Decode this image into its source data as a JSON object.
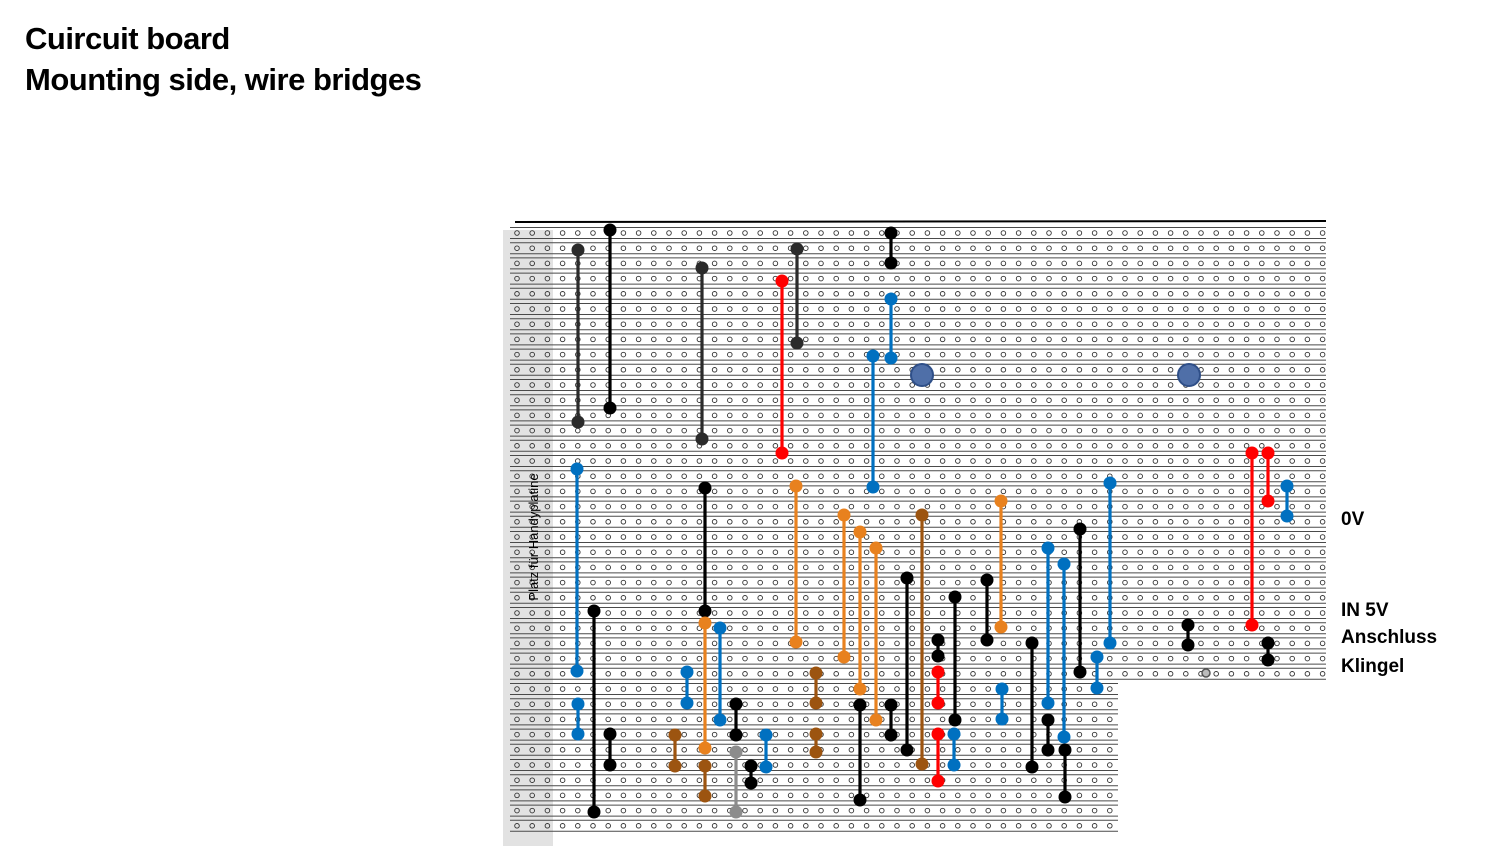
{
  "title": {
    "line1": "Cuircuit board",
    "line2": "Mounting side, wire bridges"
  },
  "strip_label": "Platz für Handyplatine",
  "connection_labels": {
    "zero_v": "0V",
    "in_5v": "IN 5V",
    "anschluss": "Anschluss",
    "klingel": "Klingel"
  },
  "colors": {
    "black": "#000000",
    "dark": "#2b2b2b",
    "red": "#ff0000",
    "blue": "#0070c0",
    "orange": "#e8811e",
    "brown": "#9c5410",
    "gray": "#8c8c8c",
    "mount_hole": "#4f6fa8"
  },
  "wire_bridge_colors": [
    "dark",
    "black",
    "dark",
    "dark",
    "red",
    "black",
    "blue",
    "blue",
    "blue",
    "black",
    "blue",
    "black",
    "orange",
    "orange",
    "orange",
    "orange",
    "brown",
    "orange",
    "blue",
    "red",
    "red",
    "blue",
    "black",
    "blue",
    "orange",
    "blue",
    "black",
    "gray",
    "black",
    "blue",
    "brown",
    "brown",
    "brown",
    "brown",
    "black",
    "black",
    "black",
    "black",
    "blue",
    "blue",
    "black",
    "black",
    "black",
    "black",
    "red",
    "red",
    "blue",
    "blue",
    "black",
    "black",
    "blue",
    "black",
    "black"
  ]
}
